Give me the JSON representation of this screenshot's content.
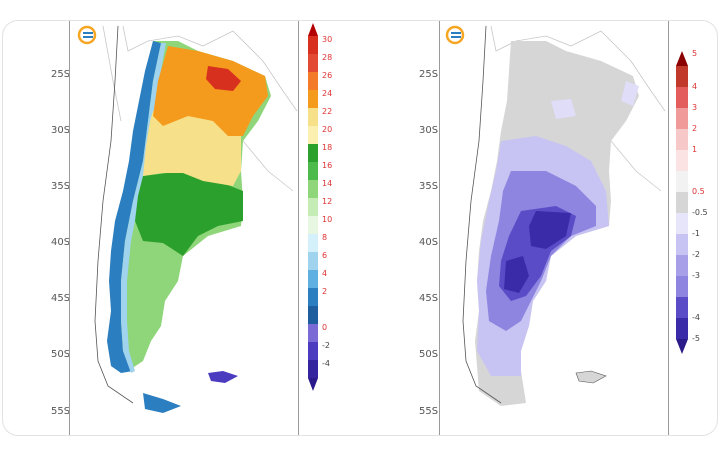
{
  "left_panel": {
    "lat_labels": [
      "25S",
      "30S",
      "35S",
      "40S",
      "45S",
      "50S",
      "55S"
    ],
    "colorbar_labels": [
      "30",
      "28",
      "26",
      "24",
      "22",
      "20",
      "18",
      "16",
      "14",
      "12",
      "10",
      "8",
      "6",
      "4",
      "2",
      "0",
      "-2",
      "-4"
    ],
    "logo_icon": "smn-logo-icon"
  },
  "right_panel": {
    "lat_labels": [
      "25S",
      "30S",
      "35S",
      "40S",
      "45S",
      "50S",
      "55S"
    ],
    "colorbar_labels": [
      "5",
      "4",
      "3",
      "2",
      "1",
      "0.5",
      "-0.5",
      "-1",
      "-2",
      "-3",
      "-4",
      "-5"
    ],
    "logo_icon": "smn-logo-icon"
  },
  "colors": {
    "hot": "#d7301f",
    "orange": "#f49a1c",
    "yellow": "#f7e08a",
    "green": "#2ca02c",
    "lightgreen": "#8fd67a",
    "blue": "#2b7fc0",
    "purple": "#4b3bbf",
    "lightpurple": "#c7c3f2",
    "gray": "#d6d6d6"
  }
}
